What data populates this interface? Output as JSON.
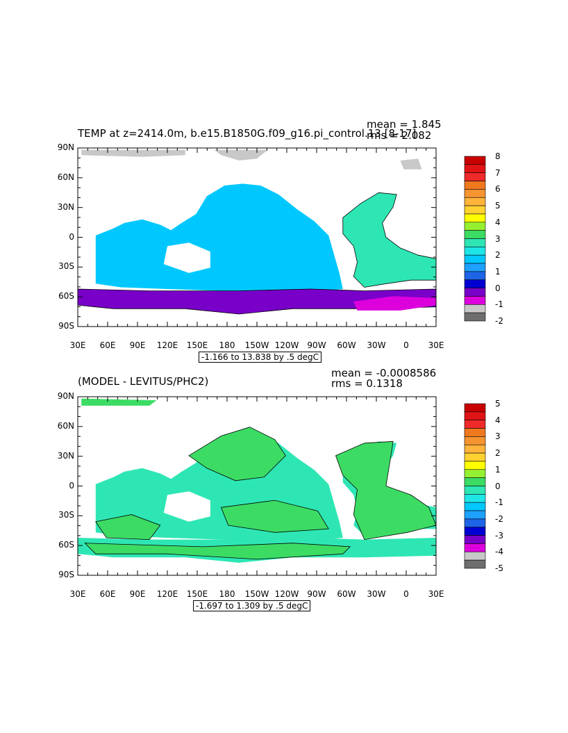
{
  "chart_data": [
    {
      "type": "heatmap",
      "title": "TEMP at z=2414.0m, b.e15.B1850G.f09_g16.pi_control.13 [8-17]",
      "stats": {
        "mean": "mean = 1.845",
        "rms": "rms = 2.082"
      },
      "range_label": "-1.166 to 13.838 by .5 degC",
      "x_ticks": [
        "30E",
        "60E",
        "90E",
        "120E",
        "150E",
        "180",
        "150W",
        "120W",
        "90W",
        "60W",
        "30W",
        "0",
        "30E"
      ],
      "y_ticks": [
        "90N",
        "60N",
        "30N",
        "0",
        "30S",
        "60S",
        "90S"
      ],
      "colorbar": {
        "labels": [
          "8",
          "7",
          "6",
          "5",
          "4",
          "3",
          "2",
          "1",
          "0",
          "-1",
          "-2"
        ],
        "colors": [
          "#c80000",
          "#e01414",
          "#ee2a2a",
          "#f0781e",
          "#f59430",
          "#ffb43c",
          "#ffd232",
          "#ffff00",
          "#96f032",
          "#3cdc64",
          "#2ee6b4",
          "#1ee6e6",
          "#00c8ff",
          "#1ea0ff",
          "#1e64e6",
          "#0000d2",
          "#7800c8",
          "#dc00dc",
          "#c8c8c8",
          "#6e6e6e"
        ]
      },
      "regions": {
        "pacific_indian": 2.0,
        "atlantic_north": 3.0,
        "southern_ocean": 0.0,
        "weddell_sector": -0.5,
        "arctic": -1.0
      }
    },
    {
      "type": "heatmap",
      "title": "(MODEL - LEVITUS/PHC2)",
      "stats": {
        "mean": "mean = -0.0008586",
        "rms": "rms = 0.1318"
      },
      "range_label": "-1.697 to 1.309 by .5 degC",
      "x_ticks": [
        "30E",
        "60E",
        "90E",
        "120E",
        "150E",
        "180",
        "150W",
        "120W",
        "90W",
        "60W",
        "30W",
        "0",
        "30E"
      ],
      "y_ticks": [
        "90N",
        "60N",
        "30N",
        "0",
        "30S",
        "60S",
        "90S"
      ],
      "colorbar": {
        "labels": [
          "5",
          "4",
          "3",
          "2",
          "1",
          "0",
          "-1",
          "-2",
          "-3",
          "-4",
          "-5"
        ],
        "colors": [
          "#c80000",
          "#e01414",
          "#ee2a2a",
          "#f0781e",
          "#f59430",
          "#ffb43c",
          "#ffd232",
          "#ffff00",
          "#96f032",
          "#3cdc64",
          "#2ee6b4",
          "#1ee6e6",
          "#00c8ff",
          "#1ea0ff",
          "#1e64e6",
          "#0000d2",
          "#7800c8",
          "#dc00dc",
          "#c8c8c8",
          "#6e6e6e"
        ]
      },
      "regions": {
        "background": -0.1,
        "pacific_patches": 0.1,
        "atlantic": 0.2,
        "southern": 0.1
      }
    }
  ]
}
